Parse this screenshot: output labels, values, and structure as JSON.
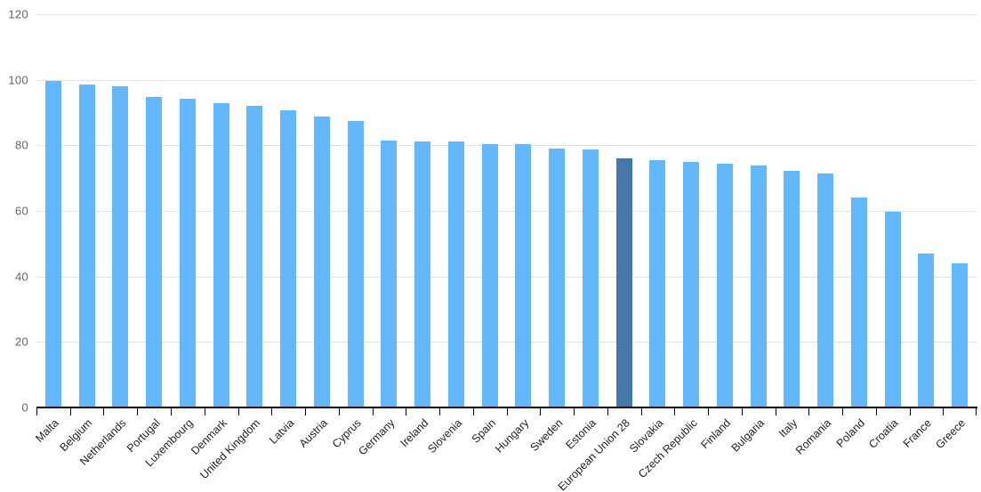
{
  "chart_data": {
    "type": "bar",
    "title": "",
    "xlabel": "",
    "ylabel": "",
    "ylim": [
      0,
      120
    ],
    "yticks": [
      0,
      20,
      40,
      60,
      80,
      100,
      120
    ],
    "grid": "horizontal",
    "legend": "none",
    "categories": [
      "Malta",
      "Belgium",
      "Netherlands",
      "Portugal",
      "Luxembourg",
      "Denmark",
      "United Kingdom",
      "Latvia",
      "Austria",
      "Cyprus",
      "Germany",
      "Ireland",
      "Slovenia",
      "Spain",
      "Hungary",
      "Sweden",
      "Estonia",
      "European Union 28",
      "Slovakia",
      "Czech Republic",
      "Finland",
      "Bulgaria",
      "Italy",
      "Romania",
      "Poland",
      "Croatia",
      "France",
      "Greece"
    ],
    "values": [
      99.7,
      98.6,
      98.0,
      94.8,
      94.3,
      92.9,
      92.1,
      90.8,
      88.9,
      87.4,
      81.5,
      81.3,
      81.2,
      80.4,
      80.3,
      79.1,
      78.8,
      76.0,
      75.4,
      74.9,
      74.3,
      73.9,
      72.2,
      71.5,
      64.2,
      59.8,
      47.1,
      44.0
    ],
    "highlight_category": "European Union 28",
    "highlight_index": 17,
    "colors": {
      "series": "#62b8fa",
      "highlight": "#4478a8",
      "gridline": "#e2e2e2",
      "axis_line": "#000000",
      "y_label": "#666666",
      "x_label": "#222222",
      "background": "#ffffff"
    }
  }
}
